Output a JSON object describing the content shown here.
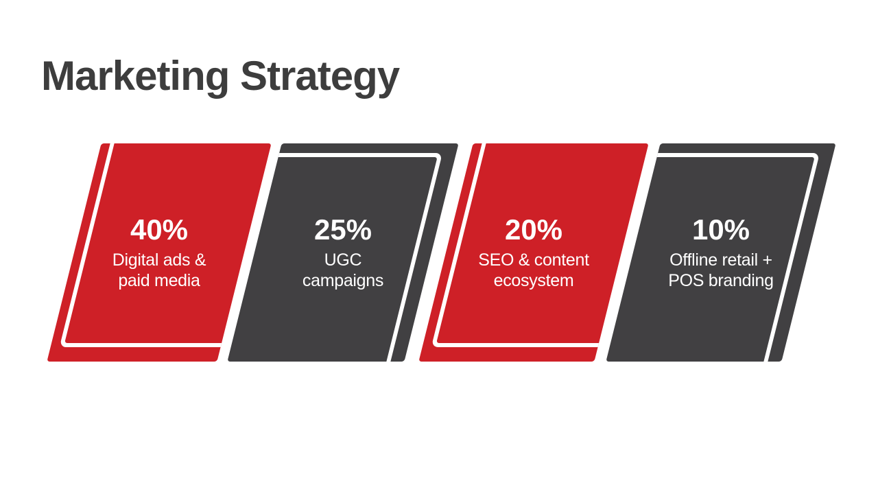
{
  "slide": {
    "title": "Marketing Strategy"
  },
  "colors": {
    "background": "#ffffff",
    "red": "#ce2027",
    "dark": "#414042",
    "title_text": "#3d3d3d",
    "card_text": "#ffffff",
    "outline": "#ffffff"
  },
  "cards": [
    {
      "percent": "40%",
      "label": "Digital ads &\npaid media",
      "variant": "red"
    },
    {
      "percent": "25%",
      "label": "UGC\ncampaigns",
      "variant": "dark"
    },
    {
      "percent": "20%",
      "label": "SEO & content\necosystem",
      "variant": "red"
    },
    {
      "percent": "10%",
      "label": "Offline retail +\nPOS branding",
      "variant": "dark"
    }
  ]
}
